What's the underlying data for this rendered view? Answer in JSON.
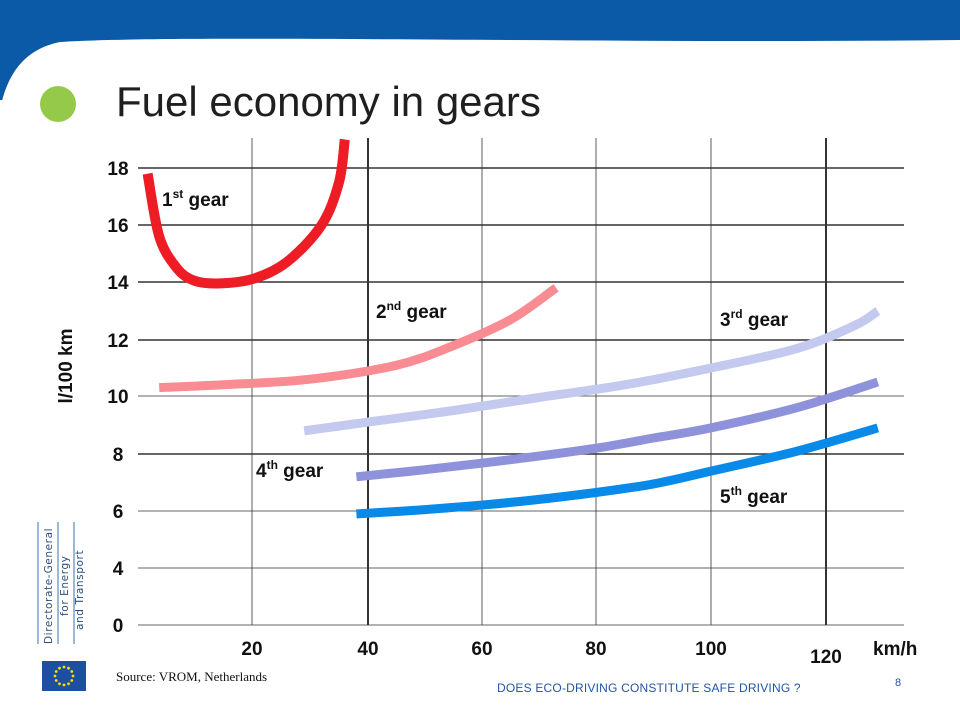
{
  "slide": {
    "title": "Fuel economy in gears",
    "source": "Source: VROM, Netherlands",
    "footer": "DOES ECO-DRIVING  CONSTITUTE  SAFE DRIVING ?",
    "page_number": "8",
    "logo_text": [
      "Directorate-General",
      "for Energy",
      "and Transport"
    ],
    "colors": {
      "banner": "#0a5aa8",
      "bullet": "#95c94a",
      "footer_text": "#2255a4"
    }
  },
  "chart_data": {
    "type": "line",
    "title": "Fuel economy in gears",
    "xlabel": "km/h",
    "ylabel": "l/100 km",
    "x_ticks": [
      "20",
      "40",
      "60",
      "80",
      "100",
      "120"
    ],
    "y_ticks": [
      "18",
      "16",
      "14",
      "12",
      "10",
      "8",
      "6",
      "4",
      "0"
    ],
    "xlim": [
      0,
      135
    ],
    "ylim": [
      0,
      19
    ],
    "grid": true,
    "series": [
      {
        "name": "1st gear",
        "label_main": "1",
        "label_sup": "st",
        "label_rest": " gear",
        "color": "#ee1c25",
        "x": [
          2,
          4,
          7,
          10,
          14,
          20,
          26,
          32,
          35,
          36
        ],
        "y": [
          17.8,
          15.6,
          14.5,
          14.05,
          13.95,
          14.1,
          14.7,
          16.0,
          17.5,
          19.0
        ]
      },
      {
        "name": "2nd gear",
        "label_main": "2",
        "label_sup": "nd",
        "label_rest": " gear",
        "color": "#f98c92",
        "x": [
          4,
          15,
          30,
          45,
          55,
          65,
          73
        ],
        "y": [
          10.3,
          10.4,
          10.6,
          11.1,
          11.8,
          12.7,
          13.8
        ]
      },
      {
        "name": "3rd gear",
        "label_main": "3",
        "label_sup": "rd",
        "label_rest": " gear",
        "color": "#c3c9ef",
        "x": [
          29,
          40,
          55,
          70,
          85,
          100,
          115,
          125,
          129
        ],
        "y": [
          8.8,
          9.1,
          9.5,
          9.95,
          10.4,
          11.0,
          11.7,
          12.5,
          13.0
        ]
      },
      {
        "name": "4th gear",
        "label_main": "4",
        "label_sup": "th",
        "label_rest": " gear",
        "color": "#8e92db",
        "x": [
          38,
          50,
          65,
          80,
          90,
          100,
          115,
          129
        ],
        "y": [
          7.2,
          7.45,
          7.8,
          8.2,
          8.55,
          8.9,
          9.6,
          10.5
        ]
      },
      {
        "name": "5th gear",
        "label_main": "5",
        "label_sup": "th",
        "label_rest": " gear",
        "color": "#0a8ae8",
        "x": [
          38,
          50,
          65,
          80,
          90,
          100,
          115,
          129
        ],
        "y": [
          5.9,
          6.05,
          6.3,
          6.65,
          6.95,
          7.4,
          8.1,
          8.9
        ]
      }
    ]
  }
}
